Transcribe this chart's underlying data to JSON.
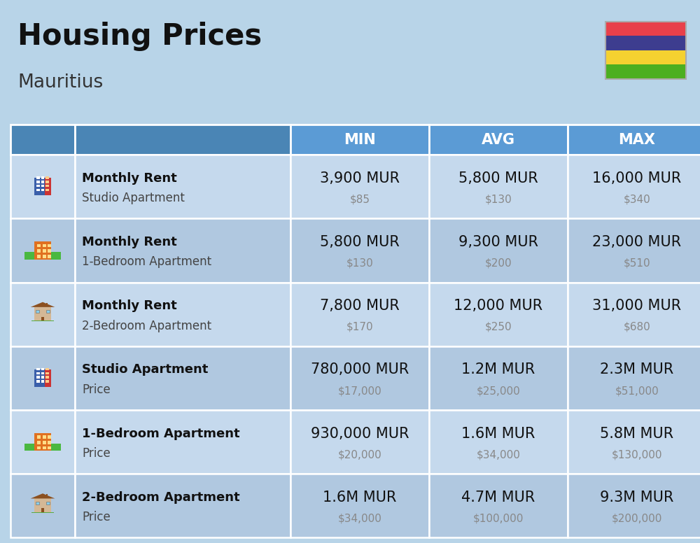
{
  "title": "Housing Prices",
  "subtitle": "Mauritius",
  "background_color": "#b8d4e8",
  "header_bg_color_dark": "#4a85b5",
  "header_bg_color_light": "#5b9bd5",
  "header_text_color": "#ffffff",
  "row_bg_even": "#c5d9ed",
  "row_bg_odd": "#b0c8e0",
  "col_headers": [
    "MIN",
    "AVG",
    "MAX"
  ],
  "rows": [
    {
      "bold_label": "Monthly Rent",
      "sub_label": "Studio Apartment",
      "icon_type": "blue_building",
      "min_mur": "3,900 MUR",
      "min_usd": "$85",
      "avg_mur": "5,800 MUR",
      "avg_usd": "$130",
      "max_mur": "16,000 MUR",
      "max_usd": "$340"
    },
    {
      "bold_label": "Monthly Rent",
      "sub_label": "1-Bedroom Apartment",
      "icon_type": "orange_building",
      "min_mur": "5,800 MUR",
      "min_usd": "$130",
      "avg_mur": "9,300 MUR",
      "avg_usd": "$200",
      "max_mur": "23,000 MUR",
      "max_usd": "$510"
    },
    {
      "bold_label": "Monthly Rent",
      "sub_label": "2-Bedroom Apartment",
      "icon_type": "beige_house",
      "min_mur": "7,800 MUR",
      "min_usd": "$170",
      "avg_mur": "12,000 MUR",
      "avg_usd": "$250",
      "max_mur": "31,000 MUR",
      "max_usd": "$680"
    },
    {
      "bold_label": "Studio Apartment",
      "sub_label": "Price",
      "icon_type": "blue_building",
      "min_mur": "780,000 MUR",
      "min_usd": "$17,000",
      "avg_mur": "1.2M MUR",
      "avg_usd": "$25,000",
      "max_mur": "2.3M MUR",
      "max_usd": "$51,000"
    },
    {
      "bold_label": "1-Bedroom Apartment",
      "sub_label": "Price",
      "icon_type": "orange_building",
      "min_mur": "930,000 MUR",
      "min_usd": "$20,000",
      "avg_mur": "1.6M MUR",
      "avg_usd": "$34,000",
      "max_mur": "5.8M MUR",
      "max_usd": "$130,000"
    },
    {
      "bold_label": "2-Bedroom Apartment",
      "sub_label": "Price",
      "icon_type": "beige_house",
      "min_mur": "1.6M MUR",
      "min_usd": "$34,000",
      "avg_mur": "4.7M MUR",
      "avg_usd": "$100,000",
      "max_mur": "9.3M MUR",
      "max_usd": "$200,000"
    }
  ],
  "flag_colors": [
    "#e8404a",
    "#3d3d8f",
    "#f5d130",
    "#4caf20"
  ],
  "title_fontsize": 30,
  "subtitle_fontsize": 19,
  "header_fontsize": 15,
  "cell_mur_fontsize": 15,
  "cell_usd_fontsize": 11,
  "label_bold_fontsize": 13,
  "label_sub_fontsize": 12
}
